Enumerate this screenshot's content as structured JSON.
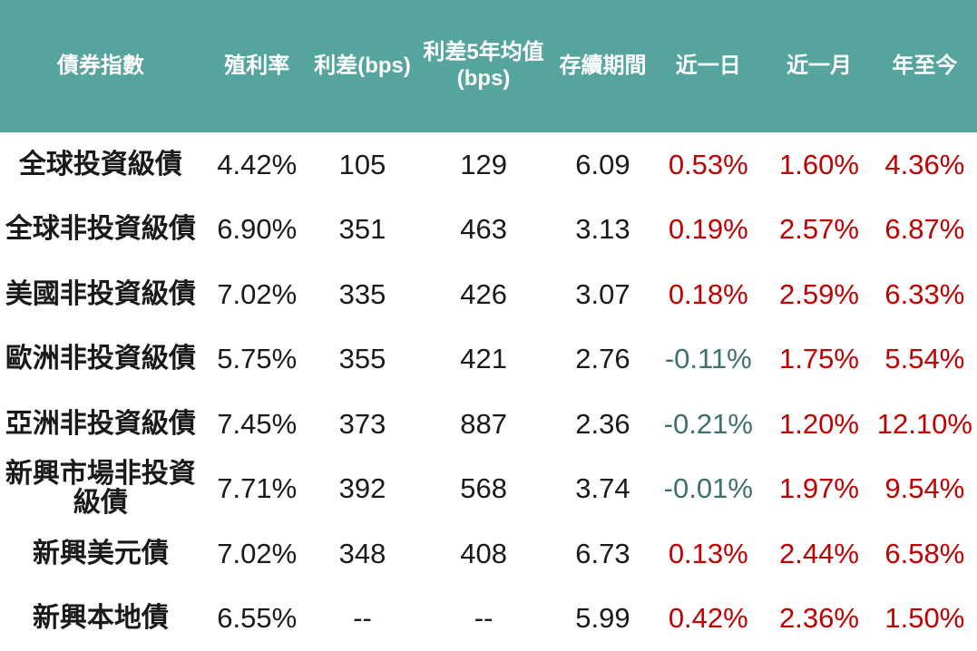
{
  "colors": {
    "header_bg": "#55A49D",
    "header_text": "#FFFFFF",
    "body_text": "#1A1A1A",
    "positive_change": "#C00000",
    "negative_change": "#3E706C",
    "background": "#FFFFFF"
  },
  "chart_data": {
    "type": "table",
    "title": "",
    "columns": [
      "債券指數",
      "殖利率",
      "利差(bps)",
      "利差5年均值\n(bps)",
      "存續期間",
      "近一日",
      "近一月",
      "年至今"
    ],
    "change_column_indexes": [
      5,
      6,
      7
    ],
    "rows": [
      [
        "全球投資級債",
        "4.42%",
        "105",
        "129",
        "6.09",
        "0.53%",
        "1.60%",
        "4.36%"
      ],
      [
        "全球非投資級債",
        "6.90%",
        "351",
        "463",
        "3.13",
        "0.19%",
        "2.57%",
        "6.87%"
      ],
      [
        "美國非投資級債",
        "7.02%",
        "335",
        "426",
        "3.07",
        "0.18%",
        "2.59%",
        "6.33%"
      ],
      [
        "歐洲非投資級債",
        "5.75%",
        "355",
        "421",
        "2.76",
        "-0.11%",
        "1.75%",
        "5.54%"
      ],
      [
        "亞洲非投資級債",
        "7.45%",
        "373",
        "887",
        "2.36",
        "-0.21%",
        "1.20%",
        "12.10%"
      ],
      [
        "新興市場非投資級債",
        "7.71%",
        "392",
        "568",
        "3.74",
        "-0.01%",
        "1.97%",
        "9.54%"
      ],
      [
        "新興美元債",
        "7.02%",
        "348",
        "408",
        "6.73",
        "0.13%",
        "2.44%",
        "6.58%"
      ],
      [
        "新興本地債",
        "6.55%",
        "--",
        "--",
        "5.99",
        "0.42%",
        "2.36%",
        "1.50%"
      ]
    ]
  }
}
